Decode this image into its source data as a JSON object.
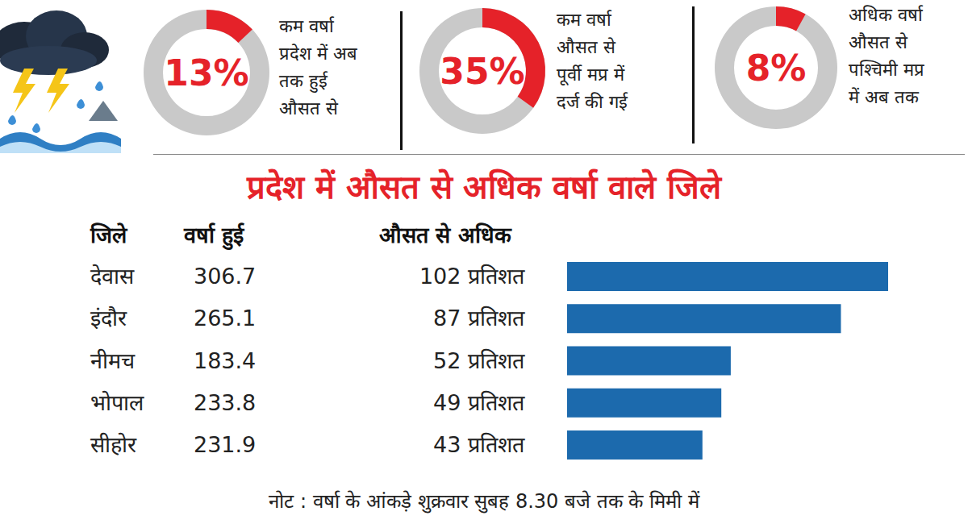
{
  "chart_data": [
    {
      "type": "gauge",
      "values": [
        13
      ],
      "value_labels": [
        "13%"
      ],
      "ylim": [
        0,
        100
      ],
      "tick_labels": false,
      "color": "#e52229",
      "text": [
        "कम वर्षा",
        "प्रदेश में अब",
        "तक हुई",
        "औसत से"
      ]
    },
    {
      "type": "gauge",
      "values": [
        35
      ],
      "value_labels": [
        "35%"
      ],
      "ylim": [
        0,
        100
      ],
      "tick_labels": false,
      "color": "#e52229",
      "text": [
        "कम वर्षा",
        "औसत से",
        "पूर्वी मप्र में",
        "दर्ज की गई"
      ]
    },
    {
      "type": "gauge",
      "values": [
        8
      ],
      "value_labels": [
        "8%"
      ],
      "ylim": [
        0,
        100
      ],
      "tick_labels": false,
      "color": "#e52229",
      "text": [
        "अधिक वर्षा",
        "औसत से",
        "पश्चिमी मप्र",
        "में अब तक"
      ]
    },
    {
      "type": "bar",
      "orientation": "horizontal",
      "title": "प्रदेश में औसत से अधिक वर्षा वाले जिले",
      "column_headers": [
        "जिले",
        "वर्षा हुई",
        "औसत से अधिक"
      ],
      "categories": [
        "देवास",
        "इंदौर",
        "नीमच",
        "भोपाल",
        "सीहोर"
      ],
      "rainfall": [
        306.7,
        265.1,
        183.4,
        233.8,
        231.9
      ],
      "values": [
        102,
        87,
        52,
        49,
        43
      ],
      "value_labels": [
        "102 प्रतिशत",
        "87 प्रतिशत",
        "52 प्रतिशत",
        "49 प्रतिशत",
        "43 प्रतिशत"
      ],
      "xlim": [
        0,
        102
      ],
      "tick_labels": false,
      "data_labels": true,
      "color": "#1c6aad",
      "note": "नोट : वर्षा के आंकड़े शुक्रवार सुबह 8.30 बजे तक के मिमी में"
    }
  ]
}
